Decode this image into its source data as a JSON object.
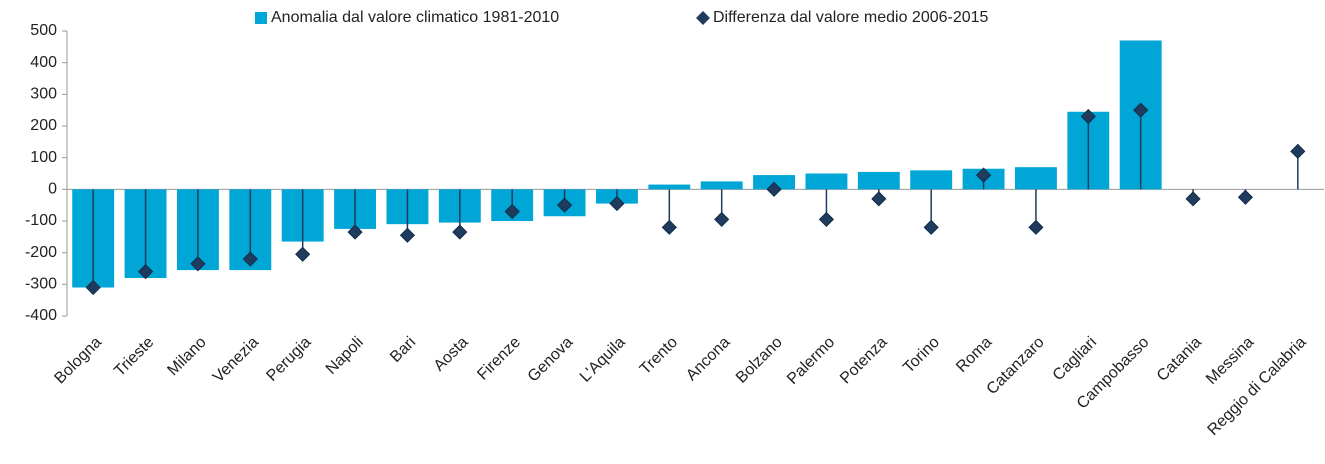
{
  "chart_data": {
    "type": "bar_marker",
    "categories": [
      "Bologna",
      "Trieste",
      "Milano",
      "Venezia",
      "Perugia",
      "Napoli",
      "Bari",
      "Aosta",
      "Firenze",
      "Genova",
      "L'Aquila",
      "Trento",
      "Ancona",
      "Bolzano",
      "Palermo",
      "Potenza",
      "Torino",
      "Roma",
      "Catanzaro",
      "Cagliari",
      "Campobasso",
      "Catania",
      "Messina",
      "Reggio di Calabria"
    ],
    "series": [
      {
        "name": "Anomalia dal valore climatico 1981-2010",
        "type": "bar",
        "color": "#00a6d6",
        "values": [
          -310,
          -280,
          -255,
          -255,
          -165,
          -125,
          -110,
          -105,
          -100,
          -85,
          -45,
          15,
          25,
          45,
          50,
          55,
          60,
          65,
          70,
          245,
          470,
          null,
          null,
          null
        ]
      },
      {
        "name": "Differenza dal valore medio 2006-2015",
        "type": "stem",
        "color": "#1f3b5e",
        "values": [
          -310,
          -260,
          -235,
          -220,
          -205,
          -135,
          -145,
          -135,
          -70,
          -50,
          -45,
          -120,
          -95,
          0,
          -95,
          -30,
          -120,
          45,
          -120,
          230,
          250,
          -30,
          -25,
          120
        ]
      }
    ],
    "ylim": [
      -400,
      500
    ],
    "yticks": [
      -400,
      -300,
      -200,
      -100,
      0,
      100,
      200,
      300,
      400,
      500
    ],
    "legend": "top",
    "grid": false
  }
}
